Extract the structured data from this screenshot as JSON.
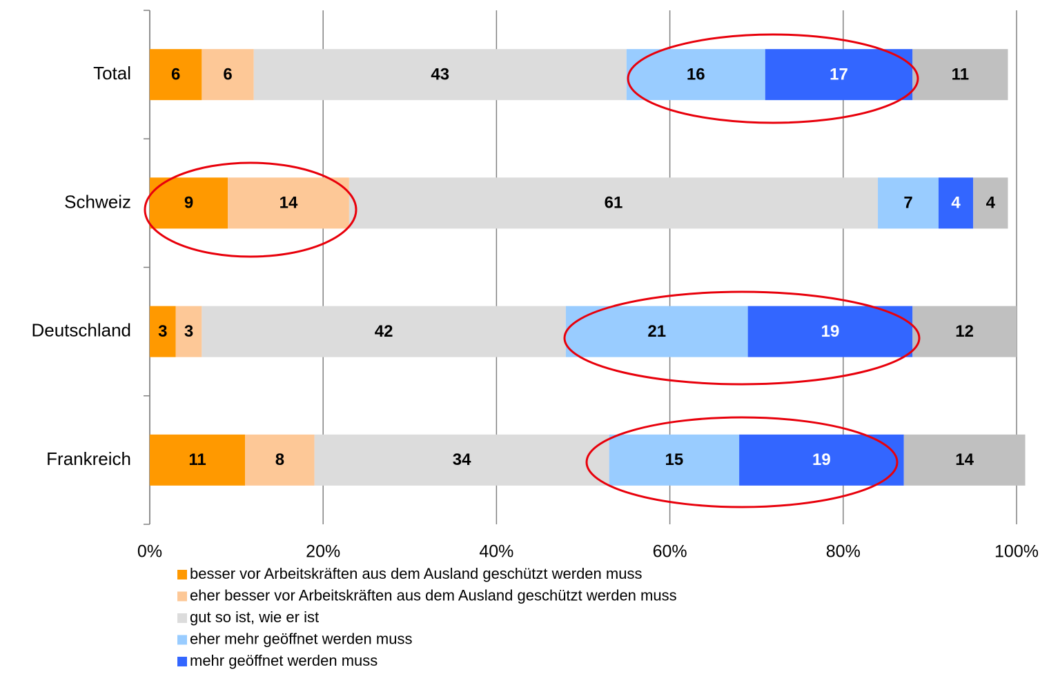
{
  "chart_data": {
    "type": "stacked_bar_horizontal",
    "categories": [
      "Total",
      "Schweiz",
      "Deutschland",
      "Frankreich"
    ],
    "series": [
      {
        "name": "besser vor Arbeitskräften aus dem Ausland geschützt werden muss",
        "color": "#ff9900",
        "label_color": "#000000",
        "values": [
          6,
          9,
          3,
          11
        ]
      },
      {
        "name": "eher besser vor Arbeitskräften aus dem Ausland geschützt werden muss",
        "color": "#fdc897",
        "label_color": "#000000",
        "values": [
          6,
          14,
          3,
          8
        ]
      },
      {
        "name": "gut so ist, wie er ist",
        "color": "#dcdcdc",
        "label_color": "#000000",
        "values": [
          43,
          61,
          42,
          34
        ]
      },
      {
        "name": "eher mehr geöffnet werden muss",
        "color": "#99ccff",
        "label_color": "#000000",
        "values": [
          16,
          7,
          21,
          15
        ]
      },
      {
        "name": "mehr geöffnet werden muss",
        "color": "#3366ff",
        "label_color": "#ffffff",
        "values": [
          17,
          4,
          19,
          19
        ]
      },
      {
        "color": "#c0c0c0",
        "label_color": "#000000",
        "values": [
          11,
          4,
          12,
          14
        ]
      }
    ],
    "xlim": [
      0,
      100
    ],
    "xticks": [
      {
        "value": 0,
        "label": "0%"
      },
      {
        "value": 20,
        "label": "20%"
      },
      {
        "value": 40,
        "label": "40%"
      },
      {
        "value": 60,
        "label": "60%"
      },
      {
        "value": 80,
        "label": "80%"
      },
      {
        "value": 100,
        "label": "100%"
      }
    ],
    "grid": true
  }
}
